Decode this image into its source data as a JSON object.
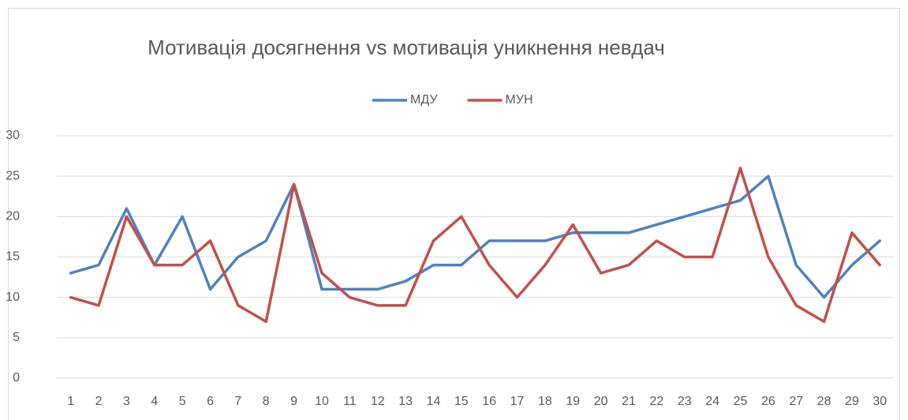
{
  "chart_data": {
    "type": "line",
    "title": "Мотивація досягнення vs мотивація уникнення невдач",
    "categories": [
      "1",
      "2",
      "3",
      "4",
      "5",
      "6",
      "7",
      "8",
      "9",
      "10",
      "11",
      "12",
      "13",
      "14",
      "15",
      "16",
      "17",
      "18",
      "19",
      "20",
      "21",
      "22",
      "23",
      "24",
      "25",
      "26",
      "27",
      "28",
      "29",
      "30"
    ],
    "series": [
      {
        "name": "МДУ",
        "color": "#4f81bd",
        "values": [
          13,
          14,
          21,
          14,
          20,
          11,
          15,
          17,
          24,
          11,
          11,
          11,
          12,
          14,
          14,
          17,
          17,
          17,
          18,
          18,
          18,
          19,
          20,
          21,
          22,
          25,
          14,
          10,
          14,
          17
        ]
      },
      {
        "name": "МУН",
        "color": "#c0504d",
        "values": [
          10,
          9,
          20,
          14,
          14,
          17,
          9,
          7,
          24,
          13,
          10,
          9,
          9,
          17,
          20,
          14,
          10,
          14,
          19,
          13,
          14,
          17,
          15,
          15,
          26,
          15,
          9,
          7,
          18,
          14
        ]
      }
    ],
    "ylim": [
      0,
      30
    ],
    "yticks": [
      0,
      5,
      10,
      15,
      20,
      25,
      30
    ],
    "grid": true,
    "legend": "top"
  }
}
